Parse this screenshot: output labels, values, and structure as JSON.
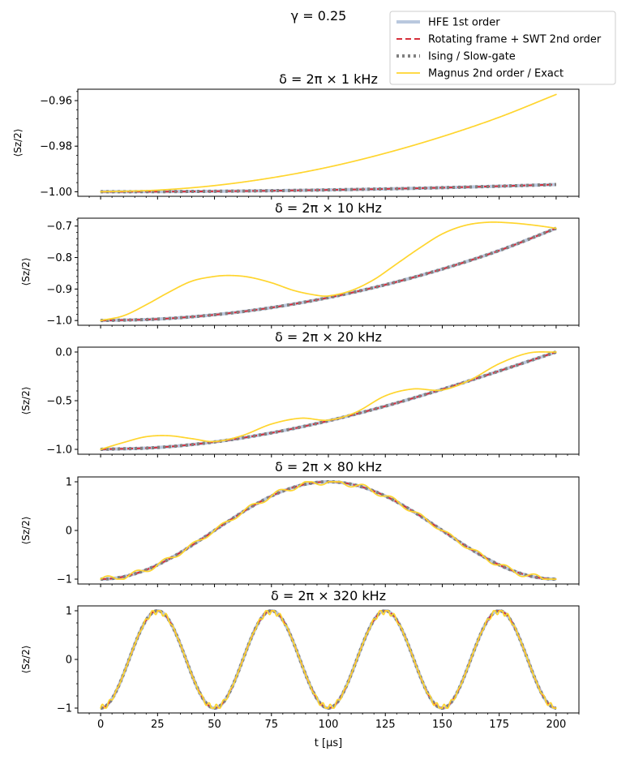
{
  "figure": {
    "suptitle": "γ = 0.25",
    "xlabel": "t [μs]",
    "ylabel": "⟨Sz/2⟩",
    "xlim": [
      -10,
      210
    ],
    "xticks": [
      0,
      25,
      50,
      75,
      100,
      125,
      150,
      175,
      200
    ]
  },
  "legend": {
    "placement": "top-right",
    "entries": [
      {
        "label": "HFE 1st order",
        "color": "#b9c8de",
        "style": "solid-thick"
      },
      {
        "label": "Rotating frame + SWT 2nd order",
        "color": "#d62f3a",
        "style": "dashed"
      },
      {
        "label": "Ising / Slow-gate",
        "color": "#808080",
        "style": "dotted"
      },
      {
        "label": "Magnus 2nd order / Exact",
        "color": "#ffd52e",
        "style": "solid"
      }
    ]
  },
  "chart_data": [
    {
      "type": "line",
      "title": "δ = 2π × 1 kHz",
      "delta_khz": 1,
      "ylim": [
        -1.002,
        -0.955
      ],
      "yticks": [
        -1.0,
        -0.98,
        -0.96
      ],
      "ytick_labels": [
        "−1.00",
        "−0.98",
        "−0.96"
      ],
      "show_xticklabels": false,
      "series": [
        {
          "name": "HFE 1st order",
          "x": [
            0,
            25,
            50,
            75,
            100,
            125,
            150,
            175,
            200
          ],
          "y": [
            -1.0,
            -0.99995,
            -0.9998,
            -0.99955,
            -0.9992,
            -0.99876,
            -0.99822,
            -0.99757,
            -0.99684
          ]
        },
        {
          "name": "Rotating frame + SWT 2nd order",
          "x": [
            0,
            25,
            50,
            75,
            100,
            125,
            150,
            175,
            200
          ],
          "y": [
            -1.0,
            -0.99995,
            -0.9998,
            -0.99955,
            -0.9992,
            -0.99876,
            -0.99822,
            -0.99757,
            -0.99684
          ]
        },
        {
          "name": "Ising / Slow-gate",
          "x": [
            0,
            25,
            50,
            75,
            100,
            125,
            150,
            175,
            200
          ],
          "y": [
            -1.0,
            -0.99995,
            -0.9998,
            -0.99955,
            -0.9992,
            -0.99876,
            -0.99822,
            -0.99757,
            -0.99684
          ]
        },
        {
          "name": "Magnus 2nd order / Exact",
          "x": [
            0,
            25,
            50,
            75,
            100,
            125,
            150,
            175,
            200
          ],
          "y": [
            -1.0,
            -0.9993,
            -0.9973,
            -0.9939,
            -0.9892,
            -0.9831,
            -0.9758,
            -0.9673,
            -0.9573
          ]
        }
      ]
    },
    {
      "type": "line",
      "title": "δ = 2π × 10 kHz",
      "delta_khz": 10,
      "ylim": [
        -1.015,
        -0.675
      ],
      "yticks": [
        -1.0,
        -0.9,
        -0.8,
        -0.7
      ],
      "ytick_labels": [
        "−1.0",
        "−0.9",
        "−0.8",
        "−0.7"
      ],
      "show_xticklabels": false,
      "series": [
        {
          "name": "HFE 1st order",
          "x": [
            0,
            25,
            50,
            75,
            100,
            125,
            150,
            175,
            200
          ],
          "y": [
            -1.0,
            -0.9954,
            -0.9817,
            -0.959,
            -0.9272,
            -0.8864,
            -0.8366,
            -0.7778,
            -0.7071
          ]
        },
        {
          "name": "Rotating frame + SWT 2nd order",
          "x": [
            0,
            25,
            50,
            75,
            100,
            125,
            150,
            175,
            200
          ],
          "y": [
            -1.0,
            -0.9954,
            -0.9817,
            -0.959,
            -0.9272,
            -0.8864,
            -0.8366,
            -0.7778,
            -0.7071
          ]
        },
        {
          "name": "Ising / Slow-gate",
          "x": [
            0,
            25,
            50,
            75,
            100,
            125,
            150,
            175,
            200
          ],
          "y": [
            -1.0,
            -0.9954,
            -0.9817,
            -0.959,
            -0.9272,
            -0.8864,
            -0.8366,
            -0.7778,
            -0.7071
          ]
        },
        {
          "name": "Magnus 2nd order / Exact",
          "x": [
            0,
            10,
            20,
            30,
            40,
            50,
            57,
            65,
            75,
            85,
            95,
            100,
            110,
            120,
            130,
            140,
            150,
            160,
            170,
            180,
            190,
            200
          ],
          "y": [
            -1.0,
            -0.985,
            -0.95,
            -0.91,
            -0.875,
            -0.86,
            -0.857,
            -0.862,
            -0.88,
            -0.905,
            -0.92,
            -0.922,
            -0.905,
            -0.87,
            -0.82,
            -0.77,
            -0.725,
            -0.698,
            -0.688,
            -0.69,
            -0.697,
            -0.707
          ]
        }
      ]
    },
    {
      "type": "line",
      "title": "δ = 2π × 20 kHz",
      "delta_khz": 20,
      "ylim": [
        -1.05,
        0.05
      ],
      "yticks": [
        -1.0,
        -0.5,
        0.0
      ],
      "ytick_labels": [
        "−1.0",
        "−0.5",
        "0.0"
      ],
      "show_xticklabels": false,
      "series": [
        {
          "name": "HFE 1st order",
          "x": [
            0,
            25,
            50,
            75,
            100,
            125,
            150,
            175,
            200
          ],
          "y": [
            -1.0,
            -0.981,
            -0.924,
            -0.831,
            -0.707,
            -0.556,
            -0.383,
            -0.195,
            0.0
          ]
        },
        {
          "name": "Rotating frame + SWT 2nd order",
          "x": [
            0,
            25,
            50,
            75,
            100,
            125,
            150,
            175,
            200
          ],
          "y": [
            -1.0,
            -0.981,
            -0.924,
            -0.831,
            -0.707,
            -0.556,
            -0.383,
            -0.195,
            0.0
          ]
        },
        {
          "name": "Ising / Slow-gate",
          "x": [
            0,
            25,
            50,
            75,
            100,
            125,
            150,
            175,
            200
          ],
          "y": [
            -1.0,
            -0.981,
            -0.924,
            -0.831,
            -0.707,
            -0.556,
            -0.383,
            -0.195,
            0.0
          ]
        },
        {
          "name": "Magnus 2nd order / Exact",
          "x": [
            0,
            10,
            20,
            30,
            40,
            50,
            62,
            75,
            88,
            100,
            112,
            125,
            137,
            150,
            162,
            175,
            188,
            200
          ],
          "y": [
            -1.0,
            -0.93,
            -0.87,
            -0.86,
            -0.89,
            -0.92,
            -0.86,
            -0.74,
            -0.68,
            -0.7,
            -0.62,
            -0.45,
            -0.38,
            -0.39,
            -0.29,
            -0.12,
            -0.01,
            0.0
          ]
        }
      ]
    },
    {
      "type": "line",
      "title": "δ = 2π × 80 kHz",
      "delta_khz": 80,
      "ylim": [
        -1.1,
        1.1
      ],
      "yticks": [
        -1,
        0,
        1
      ],
      "ytick_labels": [
        "−1",
        "0",
        "1"
      ],
      "show_xticklabels": false,
      "series": [
        {
          "name": "HFE 1st order",
          "formula": "-cos(pi*t/100)",
          "x": [
            0,
            200
          ]
        },
        {
          "name": "Rotating frame + SWT 2nd order",
          "formula": "-cos(pi*t/100)",
          "x": [
            0,
            200
          ]
        },
        {
          "name": "Ising / Slow-gate",
          "formula": "-cos(pi*t/100)",
          "x": [
            0,
            200
          ]
        },
        {
          "name": "Magnus 2nd order / Exact",
          "formula": "-cos(pi*t/100) with ripple, period 12.5 μs",
          "x": [
            0,
            200
          ]
        }
      ]
    },
    {
      "type": "line",
      "title": "δ = 2π × 320 kHz",
      "delta_khz": 320,
      "ylim": [
        -1.1,
        1.1
      ],
      "yticks": [
        -1,
        0,
        1
      ],
      "ytick_labels": [
        "−1",
        "0",
        "1"
      ],
      "show_xticklabels": true,
      "series": [
        {
          "name": "HFE 1st order",
          "formula": "-cos(2*pi*t/50)",
          "x": [
            0,
            200
          ]
        },
        {
          "name": "Rotating frame + SWT 2nd order",
          "formula": "-cos(2*pi*t/50)",
          "x": [
            0,
            200
          ]
        },
        {
          "name": "Ising / Slow-gate",
          "formula": "-cos(2*pi*t/50)",
          "x": [
            0,
            200
          ]
        },
        {
          "name": "Magnus 2nd order / Exact",
          "formula": "-cos(2*pi*t/50) with ripple near extrema, period 3.125 μs",
          "x": [
            0,
            200
          ]
        }
      ]
    }
  ]
}
